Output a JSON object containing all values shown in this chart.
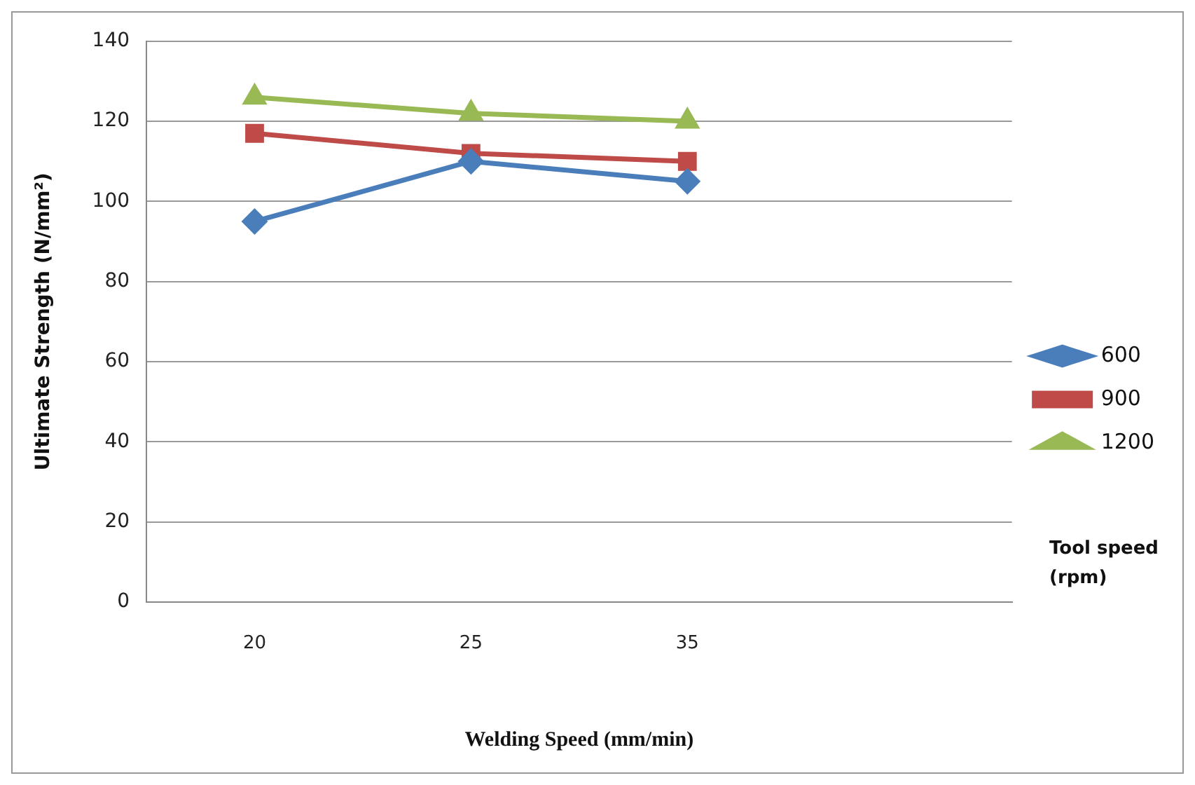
{
  "chart_data": {
    "type": "line",
    "xlabel": "Welding Speed (mm/min)",
    "ylabel": "Ultimate Strength (N/mm²)",
    "legend_title": "Tool speed (rpm)",
    "categories": [
      "20",
      "25",
      "35",
      null
    ],
    "series": [
      {
        "name": "600",
        "color": "#4a7ebb",
        "values": [
          95,
          110,
          105,
          null
        ],
        "marker": "diamond"
      },
      {
        "name": "900",
        "color": "#be4b48",
        "values": [
          117,
          112,
          110,
          null
        ],
        "marker": "square"
      },
      {
        "name": "1200",
        "color": "#98b954",
        "values": [
          126,
          122,
          120,
          null
        ],
        "marker": "triangle"
      }
    ],
    "ylim": [
      0,
      140
    ],
    "yticks": [
      0,
      20,
      40,
      60,
      80,
      100,
      120,
      140
    ],
    "grid": "y",
    "legend": "right",
    "line_style": "solid"
  }
}
